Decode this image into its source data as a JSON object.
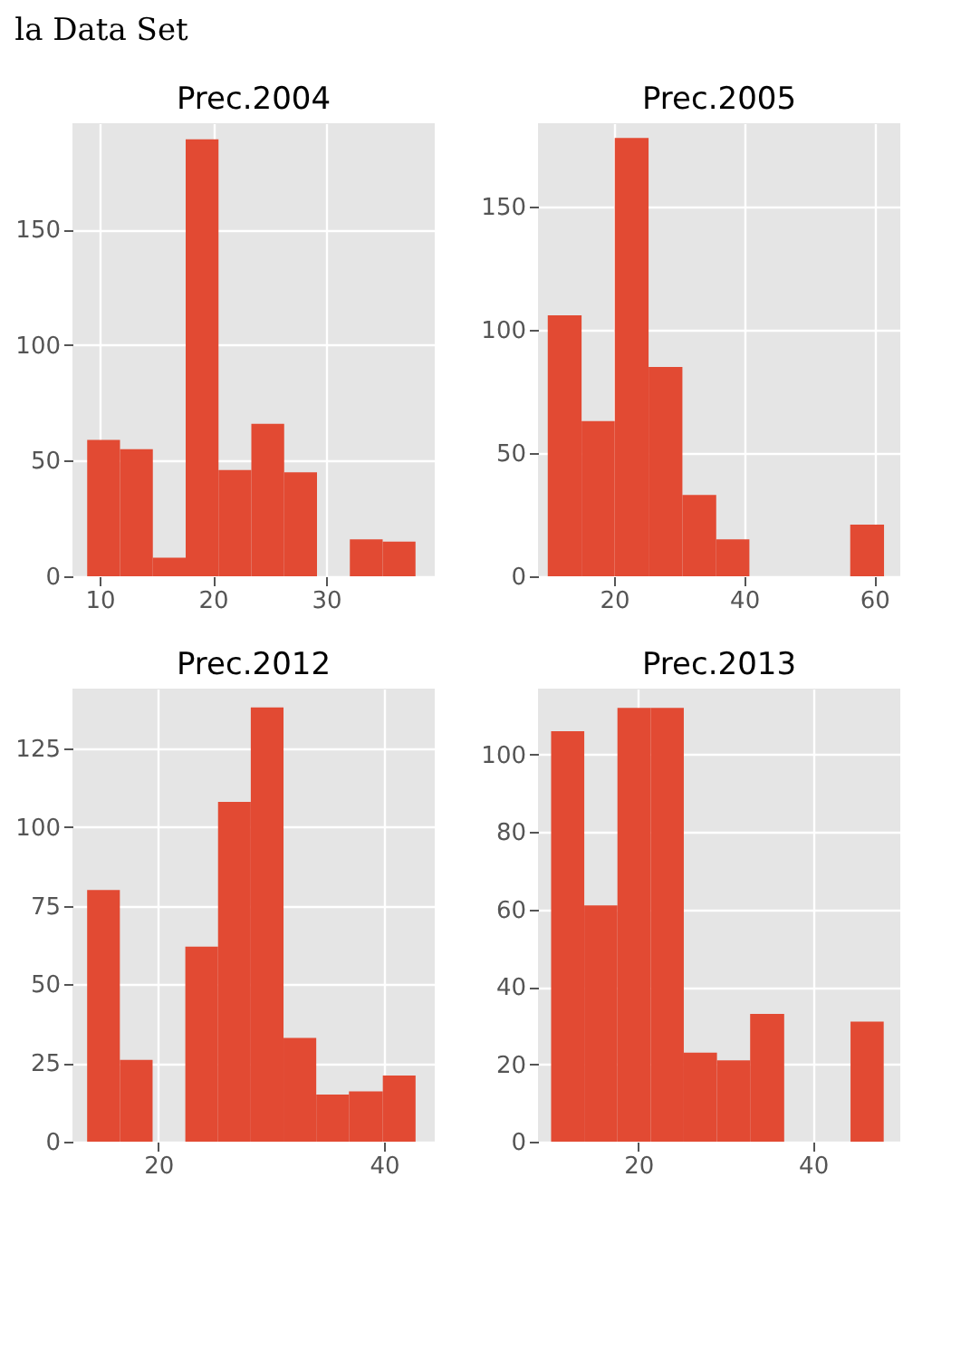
{
  "chart_data": [
    {
      "type": "histogram",
      "title": "Prec.2004",
      "annotations": [
        "la Data Set"
      ],
      "color": "#e24a33",
      "grid": true,
      "bins": [
        8.9,
        11.8,
        14.7,
        17.6,
        20.5,
        23.4,
        26.3,
        29.2,
        32.1,
        35.0,
        37.9
      ],
      "values": [
        59,
        55,
        8,
        189,
        46,
        66,
        45,
        0,
        16,
        15
      ],
      "xlim": [
        7.6,
        39.6
      ],
      "xticks": [
        10,
        20,
        30
      ],
      "ylim": [
        0,
        196
      ],
      "yticks": [
        0,
        50,
        100,
        150
      ]
    },
    {
      "type": "histogram",
      "title": "Prec.2005",
      "color": "#e24a33",
      "grid": true,
      "bins": [
        9.8,
        15.0,
        20.1,
        25.3,
        30.5,
        35.7,
        40.8,
        56.3,
        61.5
      ],
      "values": [
        106,
        63,
        178,
        85,
        33,
        15,
        0,
        21
      ],
      "xlim": [
        8.3,
        64
      ],
      "xticks": [
        20,
        40,
        60
      ],
      "ylim": [
        0,
        184
      ],
      "yticks": [
        0,
        50,
        100,
        150
      ]
    },
    {
      "type": "histogram",
      "title": "Prec.2012",
      "color": "#e24a33",
      "grid": true,
      "bins": [
        13.7,
        16.6,
        19.5,
        22.4,
        25.3,
        28.2,
        31.1,
        34.0,
        36.9,
        39.9,
        42.8
      ],
      "values": [
        80,
        26,
        0,
        62,
        108,
        138,
        33,
        15,
        16,
        21
      ],
      "xlim": [
        12.4,
        44.5
      ],
      "xticks": [
        20,
        40
      ],
      "ylim": [
        0,
        144
      ],
      "yticks": [
        0,
        25,
        50,
        75,
        100,
        125
      ]
    },
    {
      "type": "histogram",
      "title": "Prec.2013",
      "color": "#e24a33",
      "grid": true,
      "bins": [
        10.0,
        13.8,
        17.6,
        21.4,
        25.2,
        29.0,
        32.8,
        36.7,
        44.3,
        48.1
      ],
      "values": [
        106,
        61,
        112,
        112,
        23,
        21,
        33,
        0,
        31
      ],
      "xlim": [
        8.5,
        50
      ],
      "xticks": [
        20,
        40
      ],
      "ylim": [
        0,
        117
      ],
      "yticks": [
        0,
        20,
        40,
        60,
        80,
        100
      ]
    }
  ]
}
